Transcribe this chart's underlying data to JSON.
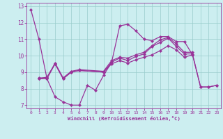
{
  "xlabel": "Windchill (Refroidissement éolien,°C)",
  "background_color": "#cceef0",
  "line_color": "#993399",
  "grid_color": "#99cccc",
  "xlim": [
    -0.5,
    23.5
  ],
  "ylim": [
    6.8,
    13.2
  ],
  "yticks": [
    7,
    8,
    9,
    10,
    11,
    12,
    13
  ],
  "xticks": [
    0,
    1,
    2,
    3,
    4,
    5,
    6,
    7,
    8,
    9,
    10,
    11,
    12,
    13,
    14,
    15,
    16,
    17,
    18,
    19,
    20,
    21,
    22,
    23
  ],
  "lines": [
    {
      "x": [
        0,
        1,
        2,
        3,
        4,
        5,
        6,
        7,
        8,
        9,
        10,
        11,
        12,
        13,
        14,
        15,
        16,
        17,
        18,
        19,
        20,
        21,
        22,
        23
      ],
      "y": [
        12.8,
        11.0,
        8.6,
        7.5,
        7.2,
        7.0,
        7.0,
        8.2,
        7.9,
        8.8,
        9.6,
        11.8,
        11.9,
        11.5,
        11.0,
        10.9,
        11.15,
        11.15,
        10.85,
        10.85,
        10.05,
        8.1,
        8.1,
        8.2
      ]
    },
    {
      "x": [
        1,
        2,
        3,
        4,
        5,
        6,
        9,
        10,
        11,
        12,
        13,
        14,
        15,
        16,
        17,
        18,
        19,
        20,
        21,
        22,
        23
      ],
      "y": [
        8.6,
        8.6,
        9.5,
        8.6,
        9.0,
        9.1,
        9.0,
        9.6,
        9.85,
        9.7,
        9.95,
        10.1,
        10.55,
        10.8,
        11.05,
        10.55,
        10.1,
        10.1,
        8.1,
        8.1,
        8.2
      ]
    },
    {
      "x": [
        1,
        2,
        3,
        4,
        5,
        6,
        9,
        10,
        11,
        12,
        13,
        14,
        15,
        16,
        17,
        18,
        19,
        20
      ],
      "y": [
        8.6,
        8.7,
        9.5,
        8.6,
        9.0,
        9.1,
        9.0,
        9.5,
        9.7,
        9.55,
        9.75,
        9.9,
        10.05,
        10.3,
        10.6,
        10.35,
        9.9,
        10.05
      ]
    },
    {
      "x": [
        1,
        2,
        3,
        4,
        5,
        6,
        9,
        10,
        11,
        12,
        13,
        14,
        15,
        16,
        17,
        18,
        19,
        20
      ],
      "y": [
        8.65,
        8.65,
        9.55,
        8.65,
        9.05,
        9.15,
        9.05,
        9.7,
        9.9,
        9.85,
        10.05,
        10.2,
        10.6,
        10.95,
        11.1,
        10.7,
        10.2,
        10.2
      ]
    }
  ]
}
